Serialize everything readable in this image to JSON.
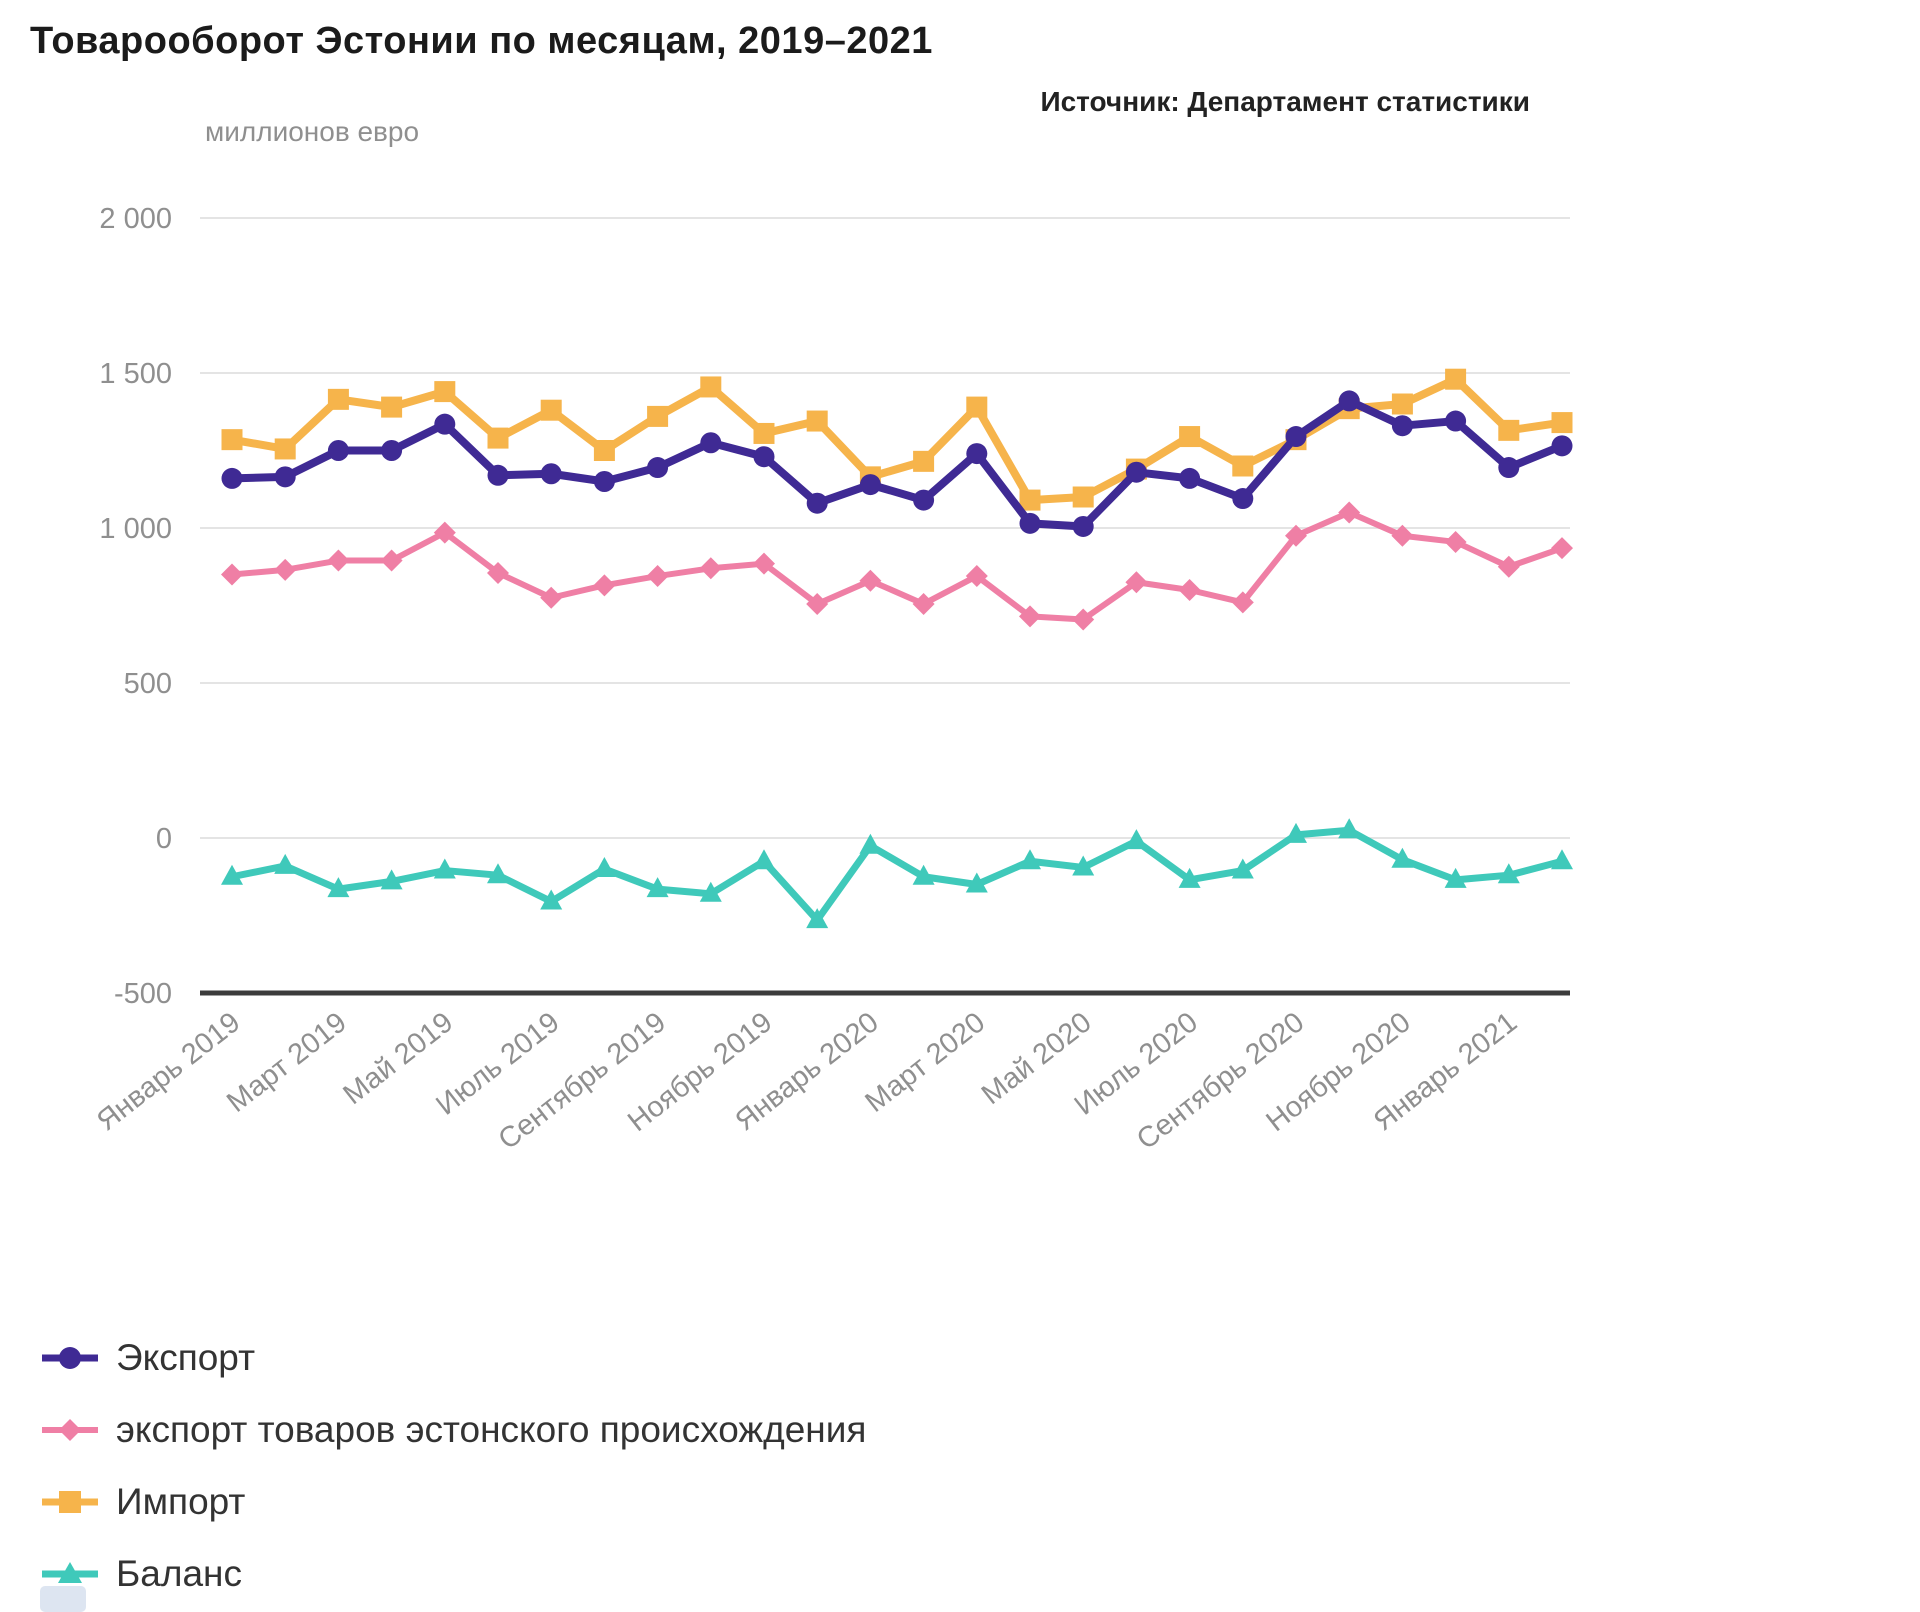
{
  "title": "Товарооборот Эстонии по месяцам, 2019–2021",
  "source": "Источник: Департамент статистики",
  "y_axis": {
    "unit": "миллионов евро",
    "ticks": [
      "2 000",
      "1 500",
      "1 000",
      "500",
      "0",
      "-500"
    ],
    "tick_values": [
      2000,
      1500,
      1000,
      500,
      0,
      -500
    ]
  },
  "x_axis": {
    "labels": [
      "Январь 2019",
      "Март 2019",
      "Май 2019",
      "Июль 2019",
      "Сентябрь 2019",
      "Ноябрь 2019",
      "Январь 2020",
      "Март 2020",
      "Май 2020",
      "Июль 2020",
      "Сентябрь 2020",
      "Ноябрь 2020",
      "Январь 2021"
    ]
  },
  "colors": {
    "grid": "#e4e4e4",
    "axis": "#3c3c3c",
    "tick_label": "#8f8f8f",
    "title": "#1b1b1b"
  },
  "chart_data": {
    "type": "line",
    "title": "Товарооборот Эстонии по месяцам, 2019–2021",
    "ylabel": "миллионов евро",
    "ylim": [
      -500,
      2000
    ],
    "grid": true,
    "legend_position": "bottom-left",
    "x": [
      "Январь 2019",
      "Февраль 2019",
      "Март 2019",
      "Апрель 2019",
      "Май 2019",
      "Июнь 2019",
      "Июль 2019",
      "Август 2019",
      "Сентябрь 2019",
      "Октябрь 2019",
      "Ноябрь 2019",
      "Декабрь 2019",
      "Январь 2020",
      "Февраль 2020",
      "Март 2020",
      "Апрель 2020",
      "Май 2020",
      "Июнь 2020",
      "Июль 2020",
      "Август 2020",
      "Сентябрь 2020",
      "Октябрь 2020",
      "Ноябрь 2020",
      "Декабрь 2020",
      "Январь 2021",
      "Февраль 2021"
    ],
    "series": [
      {
        "id": "export",
        "name": "Экспорт",
        "marker": "circle",
        "color": "#3f2a94",
        "values": [
          1160,
          1165,
          1250,
          1250,
          1335,
          1170,
          1175,
          1150,
          1195,
          1275,
          1230,
          1080,
          1140,
          1090,
          1240,
          1015,
          1005,
          1180,
          1160,
          1095,
          1295,
          1410,
          1330,
          1345,
          1195,
          1265
        ]
      },
      {
        "id": "export_origin",
        "name": "экспорт товаров эстонского происхождения",
        "marker": "diamond",
        "color": "#ef7fa5",
        "values": [
          850,
          865,
          895,
          895,
          985,
          855,
          775,
          815,
          845,
          870,
          885,
          755,
          830,
          755,
          845,
          715,
          705,
          825,
          800,
          760,
          975,
          1050,
          975,
          955,
          875,
          935
        ]
      },
      {
        "id": "import",
        "name": "Импорт",
        "marker": "square",
        "color": "#f6b44b",
        "values": [
          1285,
          1255,
          1415,
          1390,
          1440,
          1290,
          1380,
          1250,
          1360,
          1455,
          1305,
          1345,
          1165,
          1215,
          1390,
          1090,
          1100,
          1190,
          1295,
          1200,
          1285,
          1385,
          1400,
          1480,
          1315,
          1340
        ]
      },
      {
        "id": "balance",
        "name": "Баланс",
        "marker": "triangle",
        "color": "#3fc9ba",
        "values": [
          -125,
          -90,
          -165,
          -140,
          -105,
          -120,
          -205,
          -100,
          -165,
          -180,
          -75,
          -265,
          -25,
          -125,
          -150,
          -75,
          -95,
          -10,
          -135,
          -105,
          10,
          25,
          -70,
          -135,
          -120,
          -75
        ]
      }
    ]
  }
}
